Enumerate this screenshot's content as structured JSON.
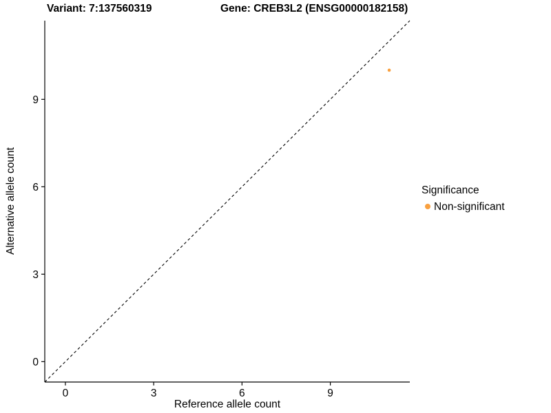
{
  "chart_data": {
    "type": "scatter",
    "title_left": "Variant: 7:137560319",
    "title_right": "Gene: CREB3L2 (ENSG00000182158)",
    "xlabel": "Reference allele count",
    "ylabel": "Alternative allele count",
    "xlim": [
      -0.7,
      11.7
    ],
    "ylim": [
      -0.7,
      11.7
    ],
    "x_ticks": [
      0,
      3,
      6,
      9
    ],
    "y_ticks": [
      0,
      3,
      6,
      9
    ],
    "grid": false,
    "identity_line": {
      "style": "dashed",
      "from": [
        -0.7,
        -0.7
      ],
      "to": [
        11.7,
        11.7
      ],
      "color": "#000000"
    },
    "series": [
      {
        "name": "Non-significant",
        "color": "#F9A03F",
        "point_radius": 2.3,
        "points": [
          {
            "x": 11,
            "y": 10
          }
        ]
      }
    ],
    "legend": {
      "title": "Significance",
      "position": "right",
      "entries": [
        {
          "label": "Non-significant",
          "color": "#F9A03F"
        }
      ]
    },
    "axis_color": "#000000",
    "background": "#FFFFFF"
  }
}
